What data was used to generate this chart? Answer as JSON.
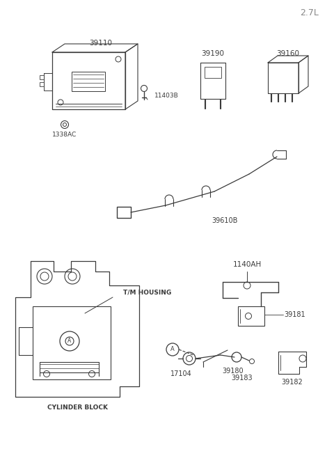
{
  "title": "2.7L",
  "bg_color": "#ffffff",
  "line_color": "#3a3a3a",
  "label_color": "#3a3a3a",
  "parts": {
    "ecu_label": "39110",
    "bolt1_label": "11403B",
    "bolt2_label": "1338AC",
    "relay1_label": "39190",
    "relay2_label": "39160",
    "harness_label": "39610B",
    "bracket_label": "1140AH",
    "sensor_bracket_label": "39181",
    "sensor_label": "17104",
    "sensor2_label": "39180",
    "sensor3_label": "39183",
    "sensor4_label": "39182",
    "housing_label": "T/M HOUSING",
    "block_label": "CYLINDER BLOCK",
    "circle_label": "A"
  }
}
